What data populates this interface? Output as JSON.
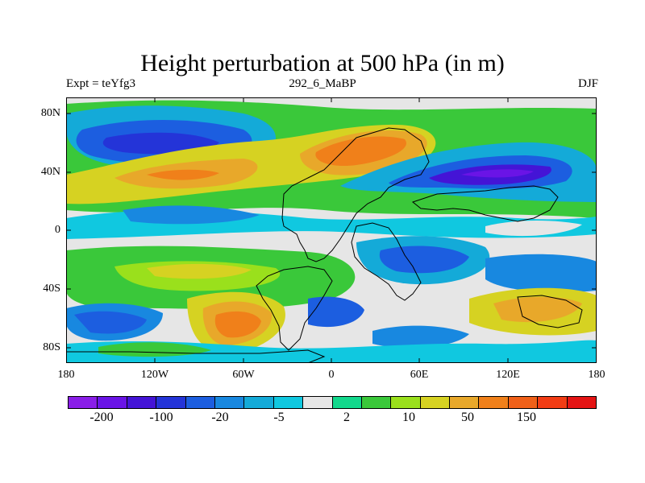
{
  "title": "Height perturbation at 500 hPa (in m)",
  "subtitle_left": "Expt = teYfg3",
  "subtitle_center": "292_6_MaBP",
  "subtitle_right": "DJF",
  "lat_labels": [
    "80N",
    "40N",
    "0",
    "40S",
    "80S"
  ],
  "lon_labels": [
    "180",
    "120W",
    "60W",
    "0",
    "60E",
    "120E",
    "180"
  ],
  "colorbar": {
    "colors": [
      "#8a1ee8",
      "#6a14e6",
      "#4414d6",
      "#2434d8",
      "#1c5ee0",
      "#1888e0",
      "#14aad8",
      "#10c8e0",
      "#e6e6e6",
      "#12d88c",
      "#3ac83a",
      "#9ae01c",
      "#d6d222",
      "#e8a82a",
      "#f0801a",
      "#f06018",
      "#f23c14",
      "#e41414"
    ],
    "labels": [
      "-200",
      "-100",
      "-20",
      "-5",
      "2",
      "10",
      "50",
      "150"
    ]
  }
}
